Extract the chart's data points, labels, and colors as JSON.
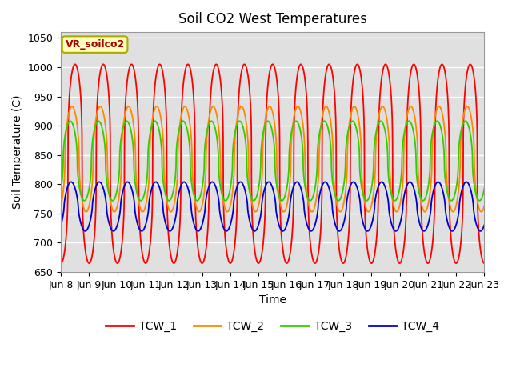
{
  "title": "Soil CO2 West Temperatures",
  "xlabel": "Time",
  "ylabel": "Soil Temperature (C)",
  "annotation": "VR_soilco2",
  "ylim": [
    650,
    1060
  ],
  "colors": {
    "TCW_1": "#ff0000",
    "TCW_2": "#ff8800",
    "TCW_3": "#33cc00",
    "TCW_4": "#0000cc"
  },
  "background_color": "#e0e0e0",
  "x_tick_labels": [
    "Jun 8",
    "Jun 9",
    "Jun 10",
    "Jun 11",
    "Jun 12",
    "Jun 13",
    "Jun 14",
    "Jun 15",
    "Jun 16",
    "Jun 17",
    "Jun 18",
    "Jun 19",
    "Jun 20",
    "Jun 21",
    "Jun 22",
    "Jun 23"
  ],
  "yticks": [
    650,
    700,
    750,
    800,
    850,
    900,
    950,
    1000,
    1050
  ],
  "n_points": 3000,
  "period": 1.0,
  "tcw1_base": 835,
  "tcw1_amp": 170,
  "tcw1_phase": -1.57,
  "tcw1_sharp": 3.0,
  "tcw2_base": 843,
  "tcw2_amp": 90,
  "tcw2_phase": -0.9,
  "tcw2_sharp": 2.0,
  "tcw3_base": 840,
  "tcw3_amp": 68,
  "tcw3_phase": -0.5,
  "tcw3_sharp": 2.0,
  "tcw4_base": 762,
  "tcw4_amp": 42,
  "tcw4_phase": -0.7,
  "tcw4_sharp": 1.5
}
